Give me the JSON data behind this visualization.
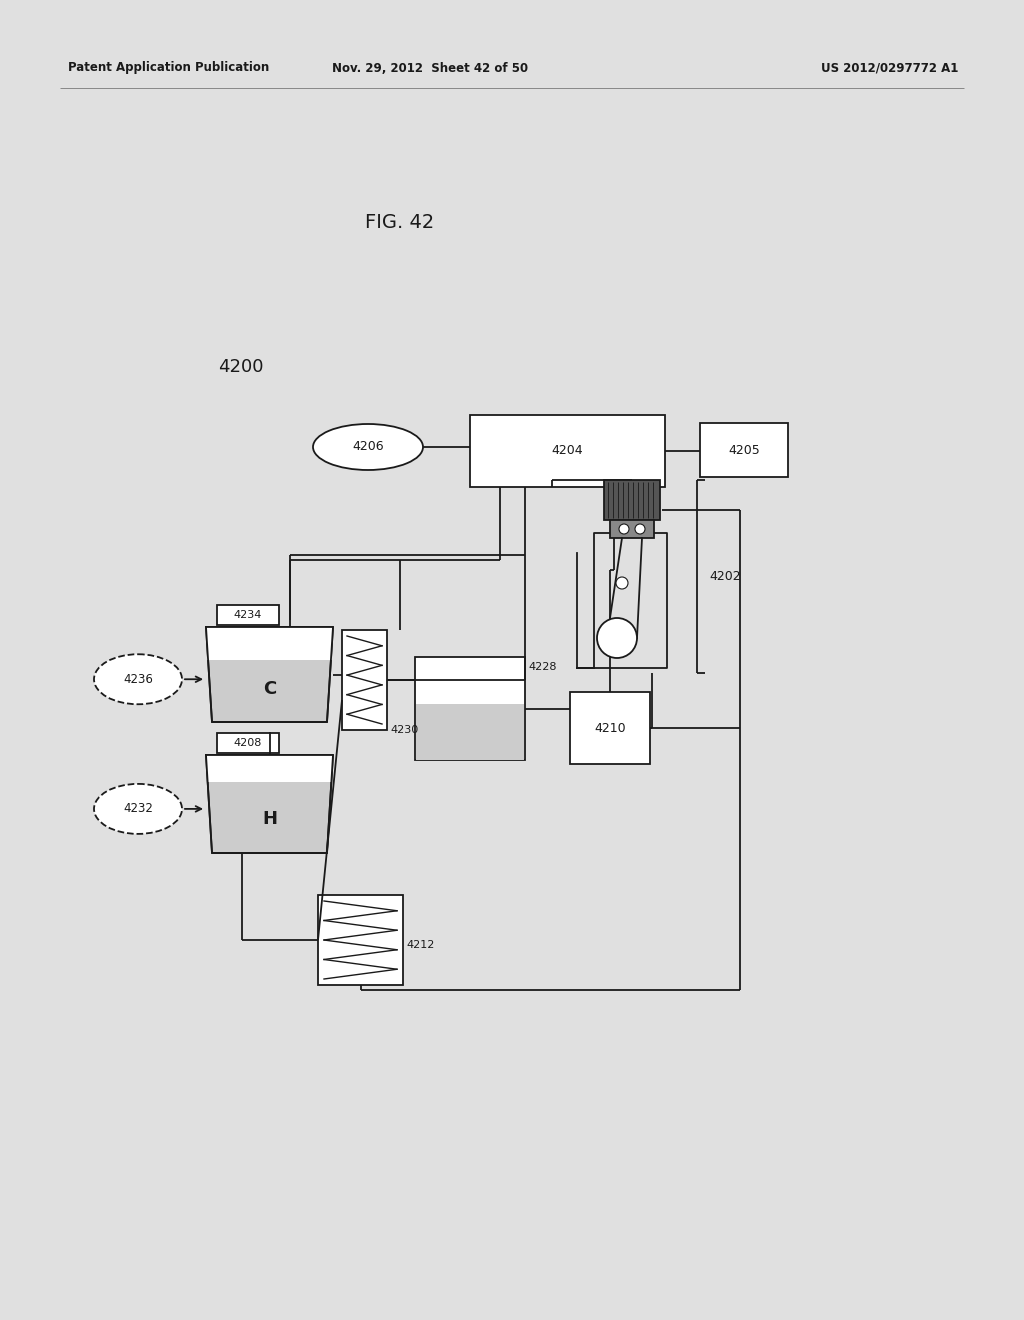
{
  "header_left": "Patent Application Publication",
  "header_mid": "Nov. 29, 2012  Sheet 42 of 50",
  "header_right": "US 2012/0297772 A1",
  "fig_title": "FIG. 42",
  "system_label": "4200",
  "bg_color": "#e8e8e8"
}
